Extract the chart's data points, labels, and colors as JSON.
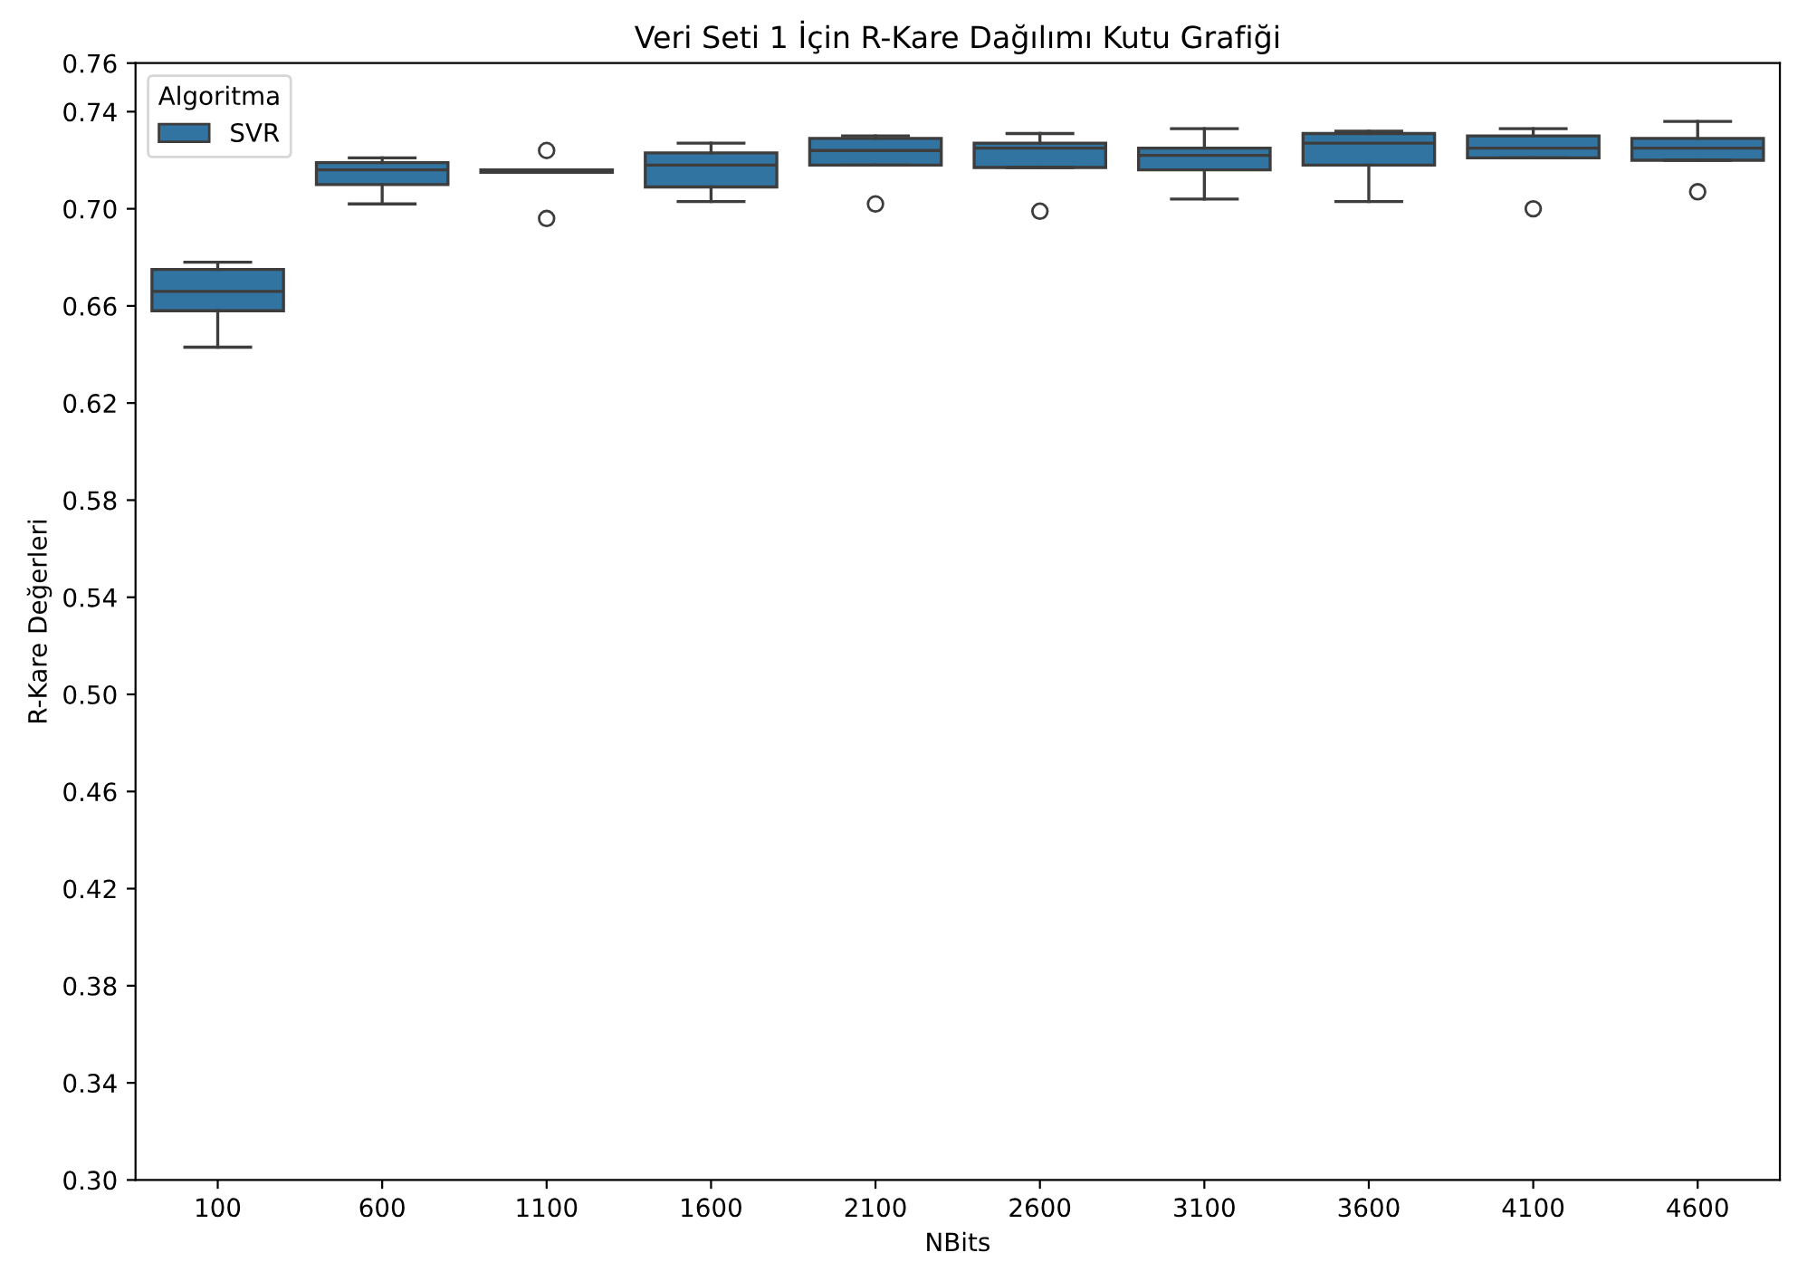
{
  "chart_data": {
    "type": "box",
    "title": "Veri Seti 1 İçin R-Kare Dağılımı Kutu Grafiği",
    "xlabel": "NBits",
    "ylabel": "R-Kare Değerleri",
    "legend_title": "Algoritma",
    "legend": "top left",
    "grid": false,
    "categories": [
      "100",
      "600",
      "1100",
      "1600",
      "2100",
      "2600",
      "3100",
      "3600",
      "4100",
      "4600"
    ],
    "ylim": [
      0.3,
      0.76
    ],
    "yticks": [
      {
        "value": 0.3,
        "label": "0.30"
      },
      {
        "value": 0.34,
        "label": "0.34"
      },
      {
        "value": 0.38,
        "label": "0.38"
      },
      {
        "value": 0.42,
        "label": "0.42"
      },
      {
        "value": 0.46,
        "label": "0.46"
      },
      {
        "value": 0.5,
        "label": "0.50"
      },
      {
        "value": 0.54,
        "label": "0.54"
      },
      {
        "value": 0.58,
        "label": "0.58"
      },
      {
        "value": 0.62,
        "label": "0.62"
      },
      {
        "value": 0.66,
        "label": "0.66"
      },
      {
        "value": 0.7,
        "label": "0.70"
      },
      {
        "value": 0.74,
        "label": "0.74"
      },
      {
        "value": 0.76,
        "label": "0.76"
      }
    ],
    "series": [
      {
        "name": "SVR",
        "color": "#3274a1",
        "boxes": [
          {
            "low": 0.643,
            "q1": 0.658,
            "median": 0.666,
            "q3": 0.675,
            "high": 0.678
          },
          {
            "low": 0.702,
            "q1": 0.71,
            "median": 0.716,
            "q3": 0.719,
            "high": 0.721
          },
          {
            "low": 0.715,
            "q1": 0.715,
            "median": 0.716,
            "q3": 0.716,
            "high": 0.716,
            "outliers": [
              0.724,
              0.696
            ]
          },
          {
            "low": 0.703,
            "q1": 0.709,
            "median": 0.718,
            "q3": 0.723,
            "high": 0.727
          },
          {
            "low": 0.718,
            "q1": 0.718,
            "median": 0.724,
            "q3": 0.729,
            "high": 0.73,
            "outliers": [
              0.702
            ]
          },
          {
            "low": 0.717,
            "q1": 0.717,
            "median": 0.725,
            "q3": 0.727,
            "high": 0.731,
            "outliers": [
              0.699
            ]
          },
          {
            "low": 0.704,
            "q1": 0.716,
            "median": 0.722,
            "q3": 0.725,
            "high": 0.733
          },
          {
            "low": 0.703,
            "q1": 0.718,
            "median": 0.727,
            "q3": 0.731,
            "high": 0.732
          },
          {
            "low": 0.721,
            "q1": 0.721,
            "median": 0.725,
            "q3": 0.73,
            "high": 0.733,
            "outliers": [
              0.7
            ]
          },
          {
            "low": 0.72,
            "q1": 0.72,
            "median": 0.725,
            "q3": 0.729,
            "high": 0.736,
            "outliers": [
              0.707
            ]
          }
        ]
      }
    ]
  }
}
